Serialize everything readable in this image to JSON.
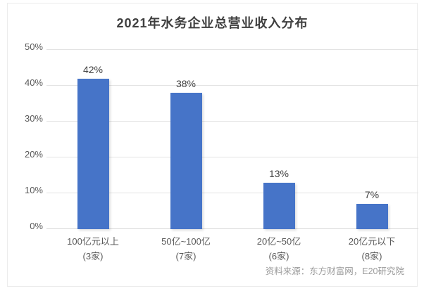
{
  "title": "2021年水务企业总营业收入分布",
  "source_note": "资料来源：东方财富网，E20研究院",
  "colors": {
    "bar": "#4674c8",
    "grid": "#e3e3e3",
    "axis": "#d8d8d8",
    "title_text": "#3f3f3f",
    "tick_text": "#595959",
    "source_text": "#9b9b9b"
  },
  "chart_data": {
    "type": "bar",
    "title": "2021年水务企业总营业收入分布",
    "categories": [
      "100亿元以上",
      "50亿~100亿",
      "20亿~50亿",
      "20亿元以下"
    ],
    "category_sublabels": [
      "(3家)",
      "(7家)",
      "(6家)",
      "(8家)"
    ],
    "values": [
      42,
      38,
      13,
      7
    ],
    "data_labels": [
      "42%",
      "38%",
      "13%",
      "7%"
    ],
    "xlabel": "",
    "ylabel": "",
    "ylim": [
      0,
      50
    ],
    "ytick_step": 10,
    "yticks": [
      "0%",
      "10%",
      "20%",
      "30%",
      "40%",
      "50%"
    ],
    "grid": true,
    "legend": false,
    "source": "资料来源：东方财富网，E20研究院"
  }
}
